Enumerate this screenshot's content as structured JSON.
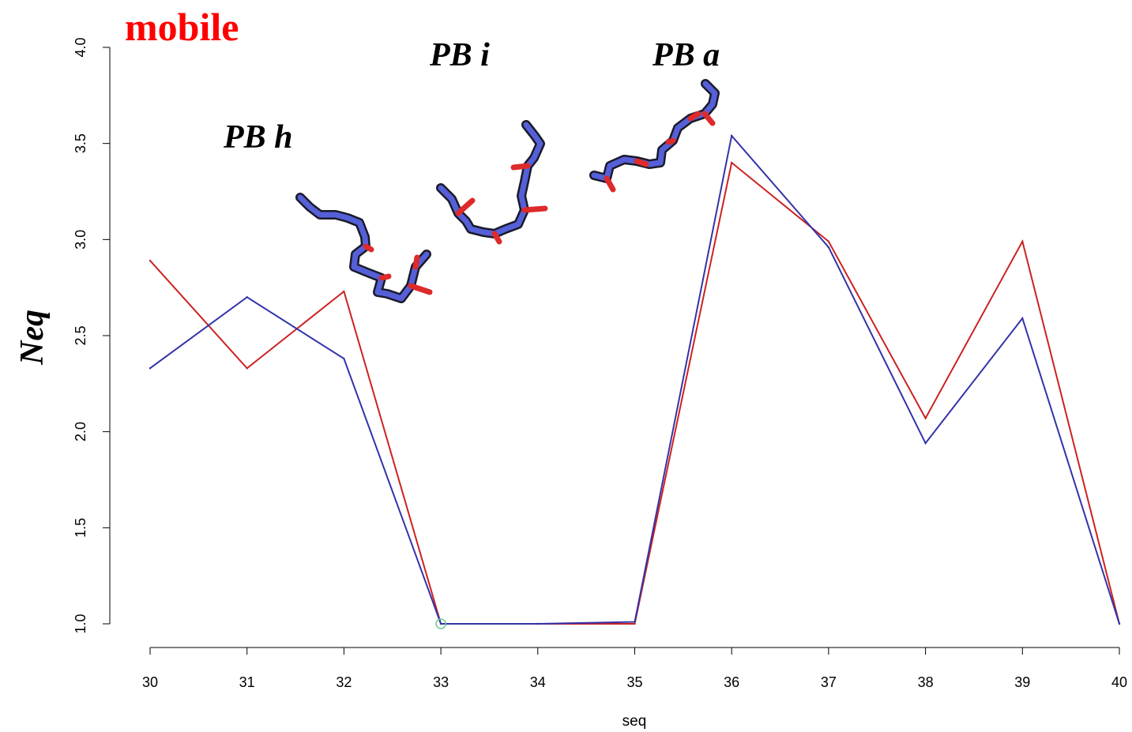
{
  "chart_data": {
    "type": "line",
    "title": "mobile",
    "xlabel": "seq",
    "ylabel": "Neq",
    "xlim": [
      30,
      40
    ],
    "ylim": [
      1.0,
      4.0
    ],
    "xticks": [
      "30",
      "31",
      "32",
      "33",
      "34",
      "35",
      "36",
      "37",
      "38",
      "39",
      "40"
    ],
    "yticks": [
      "1.0",
      "1.5",
      "2.0",
      "2.5",
      "3.0",
      "3.5",
      "4.0"
    ],
    "x": [
      30,
      31,
      32,
      33,
      34,
      35,
      36,
      37,
      38,
      39,
      40
    ],
    "series": [
      {
        "color": "#cc2222",
        "values": [
          2.89,
          2.33,
          2.73,
          1.0,
          1.0,
          1.0,
          3.4,
          2.99,
          2.07,
          2.99,
          1.0
        ]
      },
      {
        "color": "#3333aa",
        "values": [
          2.33,
          2.7,
          2.38,
          1.0,
          1.0,
          1.01,
          3.54,
          2.96,
          1.94,
          2.59,
          1.0
        ]
      }
    ],
    "highlight_point": {
      "x": 33,
      "y": 1.0,
      "color": "#66cc88"
    },
    "annotations": [
      "PB h",
      "PB i",
      "PB a"
    ],
    "grid": false,
    "legend": "none"
  },
  "colors": {
    "title": "#ff0000",
    "molecule_backbone": "#5560d8",
    "molecule_oxygen": "#dd2a2a"
  }
}
